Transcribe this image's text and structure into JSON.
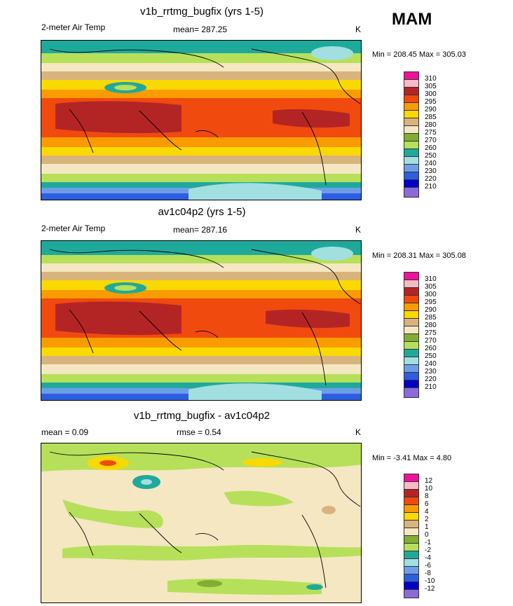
{
  "season": "MAM",
  "panels": [
    {
      "title": "v1b_rrtmg_bugfix (yrs 1-5)",
      "left_label": "2-meter Air Temp",
      "center_label": "mean= 287.25",
      "units": "K",
      "minmax": "Min = 208.45 Max = 305.03",
      "colorbar": [
        "310",
        "305",
        "300",
        "295",
        "290",
        "285",
        "280",
        "275",
        "270",
        "260",
        "250",
        "240",
        "230",
        "220",
        "210"
      ]
    },
    {
      "title": "av1c04p2 (yrs 1-5)",
      "left_label": "2-meter Air Temp",
      "center_label": "mean= 287.16",
      "units": "K",
      "minmax": "Min = 208.31 Max = 305.08",
      "colorbar": [
        "310",
        "305",
        "300",
        "295",
        "290",
        "285",
        "280",
        "275",
        "270",
        "260",
        "250",
        "240",
        "230",
        "220",
        "210"
      ]
    },
    {
      "title": "v1b_rrtmg_bugfix - av1c04p2",
      "left_label": "mean =   0.09",
      "center_label": "rmse =   0.54",
      "units": "K",
      "minmax": "Min =  -3.41 Max =   4.80",
      "colorbar": [
        "12",
        "10",
        "8",
        "6",
        "4",
        "2",
        "1",
        "0",
        "-1",
        "-2",
        "-4",
        "-6",
        "-8",
        "-10",
        "-12"
      ]
    }
  ],
  "colors": {
    "abs_palette": [
      "#f0119a",
      "#f9b9c6",
      "#b32525",
      "#f04a0f",
      "#fa9b00",
      "#fad900",
      "#d8b47c",
      "#f5e7c2",
      "#7fae32",
      "#b6e05a",
      "#1fa99b",
      "#a2dfe0",
      "#6e9de8",
      "#2d5ee0",
      "#0000c8",
      "#8a6bd8"
    ],
    "diff_palette": [
      "#f0119a",
      "#f9b9c6",
      "#b32525",
      "#f04a0f",
      "#fa9b00",
      "#fad900",
      "#d8b47c",
      "#f5e7c2",
      "#7fae32",
      "#b6e05a",
      "#1fa99b",
      "#a2dfe0",
      "#6e9de8",
      "#2d5ee0",
      "#0000c8",
      "#8a6bd8"
    ]
  }
}
